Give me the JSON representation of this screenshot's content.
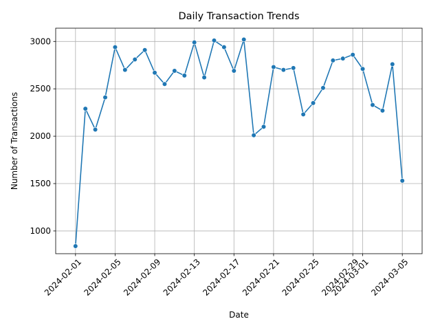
{
  "chart_data": {
    "type": "line",
    "title": "Daily Transaction Trends",
    "xlabel": "Date",
    "ylabel": "Number of Transactions",
    "grid": true,
    "x_ticks": [
      "2024-02-01",
      "2024-02-05",
      "2024-02-09",
      "2024-02-13",
      "2024-02-17",
      "2024-02-21",
      "2024-02-25",
      "2024-02-29",
      "2024-03-01",
      "2024-03-05"
    ],
    "y_ticks": [
      1000,
      1500,
      2000,
      2500,
      3000
    ],
    "ylim": [
      760,
      3140
    ],
    "xlim": [
      "2024-01-30",
      "2024-03-07"
    ],
    "series": [
      {
        "color": "#1f77b4",
        "marker": "circle",
        "x": [
          "2024-02-01",
          "2024-02-02",
          "2024-02-03",
          "2024-02-04",
          "2024-02-05",
          "2024-02-06",
          "2024-02-07",
          "2024-02-08",
          "2024-02-09",
          "2024-02-10",
          "2024-02-11",
          "2024-02-12",
          "2024-02-13",
          "2024-02-14",
          "2024-02-15",
          "2024-02-16",
          "2024-02-17",
          "2024-02-18",
          "2024-02-19",
          "2024-02-20",
          "2024-02-21",
          "2024-02-22",
          "2024-02-23",
          "2024-02-24",
          "2024-02-25",
          "2024-02-26",
          "2024-02-27",
          "2024-02-28",
          "2024-02-29",
          "2024-03-01",
          "2024-03-02",
          "2024-03-03",
          "2024-03-04",
          "2024-03-05"
        ],
        "values": [
          840,
          2290,
          2070,
          2410,
          2940,
          2700,
          2810,
          2910,
          2670,
          2550,
          2690,
          2640,
          2990,
          2620,
          3010,
          2940,
          2690,
          3020,
          2010,
          2100,
          2730,
          2700,
          2720,
          2230,
          2350,
          2510,
          2800,
          2820,
          2860,
          2710,
          2330,
          2270,
          2760,
          1530
        ]
      }
    ]
  }
}
